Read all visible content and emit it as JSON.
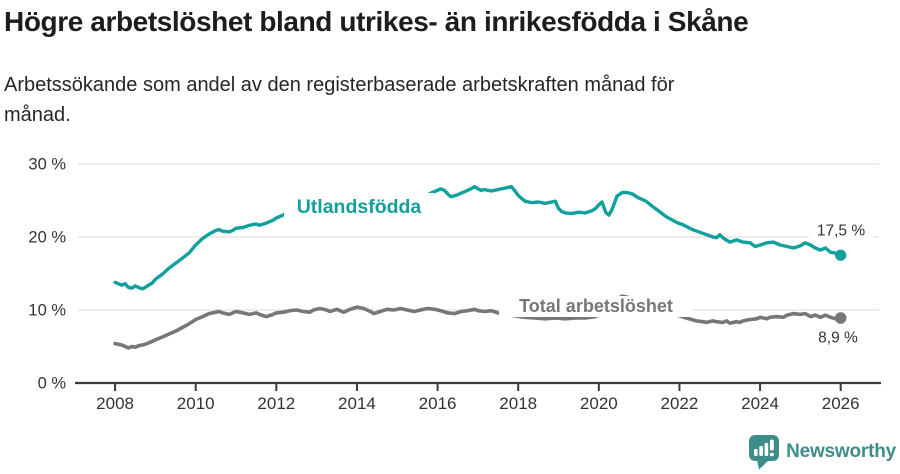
{
  "header": {
    "title": "Högre arbetslöshet bland utrikes- än inrikesfödda i Skåne",
    "subtitle_line1": "Arbetssökande som andel av den registerbaserade arbetskraften månad för",
    "subtitle_line2": "månad."
  },
  "colors": {
    "teal": "#12a09d",
    "gray": "#777777",
    "grid": "#d8d8d8",
    "axis": "#3a3a3a",
    "tick_label": "#333333",
    "value_label": "#333333",
    "title_text": "#1d1d1d",
    "logo_teal": "#3d8e8a",
    "background": "#ffffff"
  },
  "chart_data": {
    "type": "line",
    "title": "Högre arbetslöshet bland utrikes- än inrikesfödda i Skåne",
    "subtitle": "Arbetssökande som andel av den registerbaserade arbetskraften månad för månad.",
    "xlabel": "",
    "ylabel": "",
    "unit": "%",
    "grid": "horizontal",
    "legend": "inline-labels",
    "x_range": [
      2008,
      2026
    ],
    "ylim": [
      0,
      31
    ],
    "x_axis": {
      "ticks": [
        {
          "year": 2008,
          "label": "2008"
        },
        {
          "year": 2010,
          "label": "2010"
        },
        {
          "year": 2012,
          "label": "2012"
        },
        {
          "year": 2014,
          "label": "2014"
        },
        {
          "year": 2016,
          "label": "2016"
        },
        {
          "year": 2018,
          "label": "2018"
        },
        {
          "year": 2020,
          "label": "2020"
        },
        {
          "year": 2022,
          "label": "2022"
        },
        {
          "year": 2024,
          "label": "2024"
        },
        {
          "year": 2026,
          "label": "2026"
        }
      ]
    },
    "y_axis": {
      "ticks": [
        {
          "value": 0,
          "label": "0 %"
        },
        {
          "value": 10,
          "label": "10 %"
        },
        {
          "value": 20,
          "label": "20 %"
        },
        {
          "value": 30,
          "label": "30 %"
        }
      ]
    },
    "series": [
      {
        "name": "Utlandsfödda",
        "color": "#12a09d",
        "end_value": 17.5,
        "end_label": "17,5 %",
        "points": [
          [
            2008.0,
            13.8
          ],
          [
            2008.08,
            13.6
          ],
          [
            2008.17,
            13.4
          ],
          [
            2008.25,
            13.6
          ],
          [
            2008.33,
            13.1
          ],
          [
            2008.42,
            13.0
          ],
          [
            2008.5,
            13.3
          ],
          [
            2008.58,
            13.1
          ],
          [
            2008.67,
            12.9
          ],
          [
            2008.75,
            13.1
          ],
          [
            2008.83,
            13.4
          ],
          [
            2008.92,
            13.7
          ],
          [
            2009.0,
            14.2
          ],
          [
            2009.17,
            14.9
          ],
          [
            2009.33,
            15.7
          ],
          [
            2009.5,
            16.4
          ],
          [
            2009.67,
            17.1
          ],
          [
            2009.83,
            17.8
          ],
          [
            2010.0,
            18.9
          ],
          [
            2010.17,
            19.8
          ],
          [
            2010.33,
            20.4
          ],
          [
            2010.5,
            20.9
          ],
          [
            2010.58,
            21.0
          ],
          [
            2010.67,
            20.8
          ],
          [
            2010.83,
            20.7
          ],
          [
            2010.92,
            20.9
          ],
          [
            2011.0,
            21.2
          ],
          [
            2011.17,
            21.3
          ],
          [
            2011.33,
            21.6
          ],
          [
            2011.5,
            21.8
          ],
          [
            2011.58,
            21.6
          ],
          [
            2011.75,
            21.9
          ],
          [
            2011.92,
            22.3
          ],
          [
            2012.0,
            22.6
          ],
          [
            2012.17,
            23.0
          ],
          [
            2012.25,
            23.3
          ],
          [
            2012.33,
            22.9
          ],
          [
            2012.5,
            23.2
          ],
          [
            2012.67,
            23.0
          ],
          [
            2012.83,
            23.3
          ],
          [
            2013.0,
            23.2
          ],
          [
            2013.17,
            23.4
          ],
          [
            2013.33,
            23.3
          ],
          [
            2013.5,
            23.5
          ],
          [
            2013.67,
            23.3
          ],
          [
            2013.83,
            23.6
          ],
          [
            2014.0,
            23.8
          ],
          [
            2014.17,
            23.6
          ],
          [
            2014.33,
            23.3
          ],
          [
            2014.5,
            23.1
          ],
          [
            2014.67,
            23.5
          ],
          [
            2014.83,
            23.9
          ],
          [
            2015.0,
            24.3
          ],
          [
            2015.17,
            24.6
          ],
          [
            2015.33,
            24.9
          ],
          [
            2015.5,
            25.2
          ],
          [
            2015.67,
            25.5
          ],
          [
            2015.83,
            26.0
          ],
          [
            2016.0,
            26.4
          ],
          [
            2016.08,
            26.6
          ],
          [
            2016.17,
            26.4
          ],
          [
            2016.25,
            25.9
          ],
          [
            2016.33,
            25.5
          ],
          [
            2016.5,
            25.8
          ],
          [
            2016.67,
            26.2
          ],
          [
            2016.83,
            26.6
          ],
          [
            2016.92,
            26.9
          ],
          [
            2017.0,
            26.6
          ],
          [
            2017.08,
            26.4
          ],
          [
            2017.17,
            26.5
          ],
          [
            2017.33,
            26.3
          ],
          [
            2017.5,
            26.5
          ],
          [
            2017.67,
            26.7
          ],
          [
            2017.83,
            26.9
          ],
          [
            2017.92,
            26.3
          ],
          [
            2018.0,
            25.7
          ],
          [
            2018.08,
            25.3
          ],
          [
            2018.17,
            24.9
          ],
          [
            2018.33,
            24.7
          ],
          [
            2018.5,
            24.8
          ],
          [
            2018.67,
            24.6
          ],
          [
            2018.83,
            24.8
          ],
          [
            2018.92,
            24.9
          ],
          [
            2019.0,
            23.9
          ],
          [
            2019.08,
            23.5
          ],
          [
            2019.17,
            23.3
          ],
          [
            2019.33,
            23.2
          ],
          [
            2019.5,
            23.4
          ],
          [
            2019.67,
            23.3
          ],
          [
            2019.83,
            23.6
          ],
          [
            2019.92,
            23.9
          ],
          [
            2020.0,
            24.4
          ],
          [
            2020.08,
            24.8
          ],
          [
            2020.17,
            23.4
          ],
          [
            2020.25,
            23.0
          ],
          [
            2020.33,
            23.8
          ],
          [
            2020.45,
            25.6
          ],
          [
            2020.58,
            26.1
          ],
          [
            2020.7,
            26.1
          ],
          [
            2020.83,
            25.9
          ],
          [
            2020.97,
            25.4
          ],
          [
            2021.17,
            24.9
          ],
          [
            2021.33,
            24.2
          ],
          [
            2021.5,
            23.5
          ],
          [
            2021.67,
            22.8
          ],
          [
            2021.83,
            22.3
          ],
          [
            2021.97,
            21.9
          ],
          [
            2022.08,
            21.7
          ],
          [
            2022.33,
            21.0
          ],
          [
            2022.58,
            20.5
          ],
          [
            2022.83,
            20.0
          ],
          [
            2022.92,
            19.9
          ],
          [
            2023.0,
            20.3
          ],
          [
            2023.1,
            19.8
          ],
          [
            2023.25,
            19.3
          ],
          [
            2023.42,
            19.6
          ],
          [
            2023.58,
            19.3
          ],
          [
            2023.75,
            19.2
          ],
          [
            2023.88,
            18.7
          ],
          [
            2024.0,
            18.9
          ],
          [
            2024.17,
            19.2
          ],
          [
            2024.33,
            19.3
          ],
          [
            2024.5,
            18.9
          ],
          [
            2024.67,
            18.7
          ],
          [
            2024.83,
            18.5
          ],
          [
            2025.0,
            18.8
          ],
          [
            2025.12,
            19.2
          ],
          [
            2025.25,
            18.9
          ],
          [
            2025.37,
            18.5
          ],
          [
            2025.5,
            18.2
          ],
          [
            2025.62,
            18.5
          ],
          [
            2025.75,
            17.9
          ],
          [
            2025.87,
            17.8
          ],
          [
            2026.0,
            17.5
          ]
        ]
      },
      {
        "name": "Total arbetslöshet",
        "color": "#777777",
        "end_value": 8.9,
        "end_label": "8,9 %",
        "points": [
          [
            2008.0,
            5.4
          ],
          [
            2008.08,
            5.3
          ],
          [
            2008.17,
            5.2
          ],
          [
            2008.25,
            5.0
          ],
          [
            2008.33,
            4.8
          ],
          [
            2008.42,
            5.0
          ],
          [
            2008.5,
            4.9
          ],
          [
            2008.58,
            5.1
          ],
          [
            2008.67,
            5.2
          ],
          [
            2008.75,
            5.3
          ],
          [
            2008.83,
            5.5
          ],
          [
            2008.92,
            5.7
          ],
          [
            2009.0,
            5.9
          ],
          [
            2009.17,
            6.3
          ],
          [
            2009.33,
            6.7
          ],
          [
            2009.5,
            7.1
          ],
          [
            2009.67,
            7.6
          ],
          [
            2009.83,
            8.1
          ],
          [
            2010.0,
            8.7
          ],
          [
            2010.17,
            9.1
          ],
          [
            2010.33,
            9.5
          ],
          [
            2010.5,
            9.7
          ],
          [
            2010.58,
            9.8
          ],
          [
            2010.67,
            9.6
          ],
          [
            2010.83,
            9.4
          ],
          [
            2010.92,
            9.6
          ],
          [
            2011.0,
            9.8
          ],
          [
            2011.17,
            9.6
          ],
          [
            2011.33,
            9.4
          ],
          [
            2011.5,
            9.6
          ],
          [
            2011.58,
            9.4
          ],
          [
            2011.75,
            9.1
          ],
          [
            2011.92,
            9.4
          ],
          [
            2012.0,
            9.6
          ],
          [
            2012.17,
            9.7
          ],
          [
            2012.33,
            9.9
          ],
          [
            2012.5,
            10.0
          ],
          [
            2012.67,
            9.8
          ],
          [
            2012.83,
            9.7
          ],
          [
            2012.92,
            10.0
          ],
          [
            2013.08,
            10.2
          ],
          [
            2013.25,
            10.0
          ],
          [
            2013.33,
            9.8
          ],
          [
            2013.5,
            10.1
          ],
          [
            2013.67,
            9.7
          ],
          [
            2013.83,
            10.1
          ],
          [
            2014.0,
            10.4
          ],
          [
            2014.17,
            10.2
          ],
          [
            2014.33,
            9.8
          ],
          [
            2014.42,
            9.5
          ],
          [
            2014.58,
            9.8
          ],
          [
            2014.75,
            10.1
          ],
          [
            2014.92,
            10.0
          ],
          [
            2015.08,
            10.2
          ],
          [
            2015.25,
            10.0
          ],
          [
            2015.42,
            9.8
          ],
          [
            2015.58,
            10.0
          ],
          [
            2015.75,
            10.2
          ],
          [
            2015.92,
            10.1
          ],
          [
            2016.08,
            9.9
          ],
          [
            2016.25,
            9.6
          ],
          [
            2016.42,
            9.5
          ],
          [
            2016.58,
            9.8
          ],
          [
            2016.75,
            9.9
          ],
          [
            2016.92,
            10.1
          ],
          [
            2017.0,
            9.9
          ],
          [
            2017.17,
            9.8
          ],
          [
            2017.33,
            9.9
          ],
          [
            2017.5,
            9.6
          ],
          [
            2017.67,
            9.4
          ],
          [
            2017.92,
            9.2
          ],
          [
            2018.17,
            9.0
          ],
          [
            2018.42,
            8.9
          ],
          [
            2018.67,
            8.8
          ],
          [
            2018.92,
            8.9
          ],
          [
            2019.17,
            8.8
          ],
          [
            2019.42,
            8.9
          ],
          [
            2019.67,
            8.9
          ],
          [
            2019.92,
            9.1
          ],
          [
            2020.08,
            9.6
          ],
          [
            2020.25,
            10.6
          ],
          [
            2020.42,
            11.4
          ],
          [
            2020.58,
            11.9
          ],
          [
            2020.75,
            11.7
          ],
          [
            2020.92,
            11.4
          ],
          [
            2021.08,
            11.0
          ],
          [
            2021.25,
            10.6
          ],
          [
            2021.5,
            10.1
          ],
          [
            2021.75,
            9.6
          ],
          [
            2022.0,
            9.2
          ],
          [
            2022.17,
            8.9
          ],
          [
            2022.3,
            8.7
          ],
          [
            2022.42,
            8.5
          ],
          [
            2022.58,
            8.4
          ],
          [
            2022.67,
            8.3
          ],
          [
            2022.83,
            8.5
          ],
          [
            2022.92,
            8.4
          ],
          [
            2023.08,
            8.3
          ],
          [
            2023.17,
            8.5
          ],
          [
            2023.25,
            8.2
          ],
          [
            2023.42,
            8.4
          ],
          [
            2023.5,
            8.3
          ],
          [
            2023.58,
            8.5
          ],
          [
            2023.75,
            8.7
          ],
          [
            2023.92,
            8.8
          ],
          [
            2024.0,
            9.0
          ],
          [
            2024.17,
            8.8
          ],
          [
            2024.25,
            9.0
          ],
          [
            2024.42,
            9.1
          ],
          [
            2024.58,
            9.0
          ],
          [
            2024.67,
            9.3
          ],
          [
            2024.83,
            9.5
          ],
          [
            2025.0,
            9.4
          ],
          [
            2025.12,
            9.5
          ],
          [
            2025.25,
            9.1
          ],
          [
            2025.37,
            9.3
          ],
          [
            2025.5,
            9.0
          ],
          [
            2025.62,
            9.3
          ],
          [
            2025.75,
            9.0
          ],
          [
            2025.87,
            8.8
          ],
          [
            2026.0,
            8.9
          ]
        ]
      }
    ]
  },
  "footer": {
    "brand": "Newsworthy",
    "logo_icon": "bar-chart-speech-bubble-icon"
  }
}
